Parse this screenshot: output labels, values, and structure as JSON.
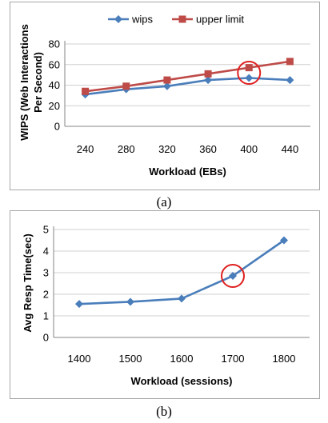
{
  "chart_data": [
    {
      "type": "line",
      "categories": [
        "240",
        "280",
        "320",
        "360",
        "400",
        "440"
      ],
      "series": [
        {
          "name": "wips",
          "values": [
            31,
            36,
            39,
            45,
            47,
            45
          ],
          "color": "#4a7ebb",
          "marker": "diamond"
        },
        {
          "name": "upper limit",
          "values": [
            34,
            39,
            45,
            51,
            57,
            63
          ],
          "color": "#be4b48",
          "marker": "square"
        }
      ],
      "ylabel": "WIPS (Web Interactions Per Second)",
      "xlabel": "Workload (EBs)",
      "ylim": [
        0,
        80
      ],
      "yticks": [
        0,
        20,
        40,
        60,
        80
      ],
      "grid": true,
      "legend": "top",
      "highlight_category": "400",
      "highlight_color": "#e02020",
      "caption": "(a)"
    },
    {
      "type": "line",
      "categories": [
        "1400",
        "1500",
        "1600",
        "1700",
        "1800"
      ],
      "series": [
        {
          "values": [
            1.55,
            1.65,
            1.8,
            2.85,
            4.5
          ],
          "color": "#4a7ebb",
          "marker": "diamond"
        }
      ],
      "ylabel": "Avg Resp Time(sec)",
      "xlabel": "Workload (sessions)",
      "ylim": [
        0,
        5
      ],
      "yticks": [
        0,
        1,
        2,
        3,
        4,
        5
      ],
      "grid": true,
      "legend": "none",
      "highlight_category": "1700",
      "highlight_color": "#e02020",
      "caption": "(b)"
    }
  ]
}
